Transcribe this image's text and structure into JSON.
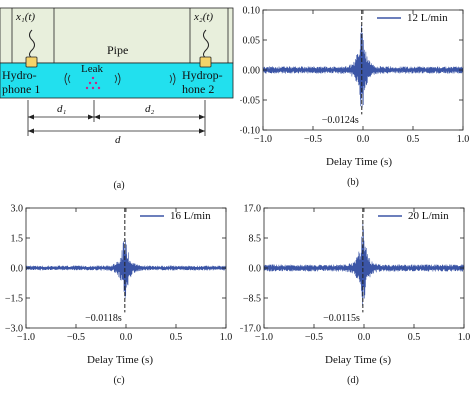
{
  "diagram": {
    "pipe_label": "Pipe",
    "leak_label": "Leak",
    "sensor1_signal": "x₁(t)",
    "sensor2_signal": "x₂(t)",
    "hydrophone1_line1": "Hydro-",
    "hydrophone1_line2": "phone 1",
    "hydrophone2_line1": "Hydrop-",
    "hydrophone2_line2": "hone 2",
    "dim_d1": "d₁",
    "dim_d2": "d₂",
    "dim_d": "d",
    "colors": {
      "pipe_fill": "#e8efdc",
      "water_fill": "#22e0ee",
      "hydrophone_fill": "#f5d36a",
      "leak_dots": "#c22a8a"
    }
  },
  "panel_labels": {
    "a": "(a)",
    "b": "(b)",
    "c": "(c)",
    "d": "(d)"
  },
  "chart_data": [
    {
      "id": "b",
      "type": "line",
      "series": [
        {
          "name": "12 L/min",
          "color": "#3b55a6"
        }
      ],
      "xlabel": "Delay Time (s)",
      "ylabel": "",
      "xlim": [
        -1.0,
        1.0
      ],
      "ylim": [
        -0.1,
        0.1
      ],
      "xticks": [
        "−1.0",
        "−0.5",
        "0.0",
        "0.5",
        "1.0"
      ],
      "yticks": [
        "0.10",
        "0.05",
        "0.00",
        "−0.05",
        "−0.10"
      ],
      "ytick_values": [
        0.1,
        0.05,
        0,
        -0.05,
        -0.1
      ],
      "noise_amp": 0.006,
      "peak_amp": 0.085,
      "peak_x": -0.0124,
      "annotation": "−0.0124s",
      "legend_position": "top-right"
    },
    {
      "id": "c",
      "type": "line",
      "series": [
        {
          "name": "16 L/min",
          "color": "#3b55a6"
        }
      ],
      "xlabel": "Delay Time (s)",
      "ylabel": "",
      "xlim": [
        -1.0,
        1.0
      ],
      "ylim": [
        -3.0,
        3.0
      ],
      "xticks": [
        "−1.0",
        "−0.5",
        "0.0",
        "0.5",
        "1.0"
      ],
      "yticks": [
        "3.0",
        "1.5",
        "0.0",
        "−1.5",
        "−3.0"
      ],
      "ytick_values": [
        3.0,
        1.5,
        0,
        -1.5,
        -3.0
      ],
      "noise_amp": 0.12,
      "peak_amp": 2.0,
      "peak_x": -0.0118,
      "annotation": "−0.0118s",
      "legend_position": "top-right"
    },
    {
      "id": "d",
      "type": "line",
      "series": [
        {
          "name": "20 L/min",
          "color": "#3b55a6"
        }
      ],
      "xlabel": "Delay Time (s)",
      "ylabel": "",
      "xlim": [
        -1.0,
        1.0
      ],
      "ylim": [
        -17.0,
        17.0
      ],
      "xticks": [
        "−1.0",
        "−0.5",
        "0.0",
        "0.5",
        "1.0"
      ],
      "yticks": [
        "17.0",
        "8.5",
        "0.0",
        "−8.5",
        "−17.0"
      ],
      "ytick_values": [
        17.0,
        8.5,
        0,
        -8.5,
        -17.0
      ],
      "noise_amp": 1.0,
      "peak_amp": 13.0,
      "peak_x": -0.0115,
      "annotation": "−0.0115s",
      "legend_position": "top-right"
    }
  ]
}
